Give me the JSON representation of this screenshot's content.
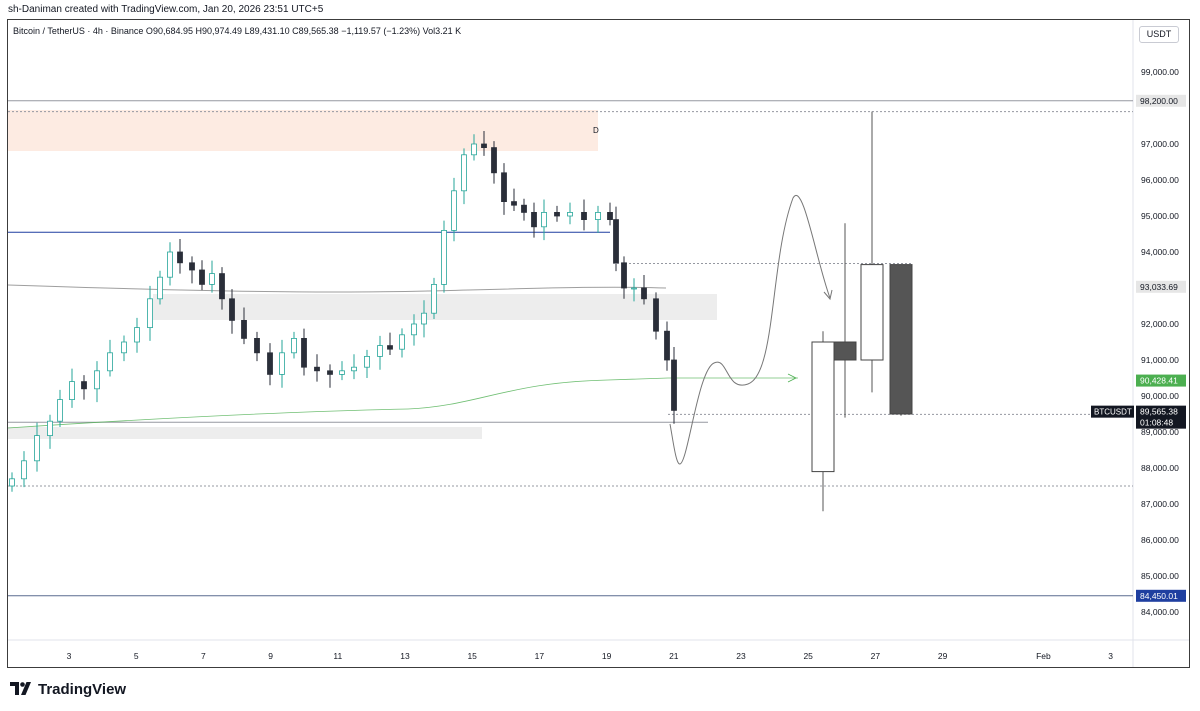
{
  "caption": "sh-Daniman created with TradingView.com, Jan 20, 2026 23:51 UTC+5",
  "symbol_bar": {
    "name": "Bitcoin / TetherUS · 4h · Binance",
    "o_key": "O",
    "o": "90,684.95",
    "h_key": "H",
    "h": "90,974.49",
    "l_key": "L",
    "l": "89,431.10",
    "c_key": "C",
    "c": "89,565.38",
    "change": "−1,119.57 (−1.23%)",
    "vol_key": "Vol",
    "vol": "3.21 K"
  },
  "currency": "USDT",
  "footer": {
    "brand": "TradingView"
  },
  "colors": {
    "up_candle": "#ffffff",
    "down_candle": "#2a2e39",
    "candle_line": "#2a2e39",
    "accent_blue": "#1f3fa0",
    "ma_green": "#4caf50",
    "supply_zone": "#fdebe2",
    "gray_zone": "#ededed"
  },
  "chart_data": {
    "type": "candlestick",
    "timeframe": "4h",
    "x_tick_labels": [
      "3",
      "5",
      "7",
      "9",
      "11",
      "13",
      "15",
      "17",
      "19",
      "21",
      "23",
      "25",
      "27",
      "29",
      "Feb",
      "3"
    ],
    "y_tick_labels": [
      "99,000.00",
      "97,000.00",
      "96,000.00",
      "95,000.00",
      "94,000.00",
      "92,000.00",
      "91,000.00",
      "90,000.00",
      "89,000.00",
      "88,000.00",
      "87,000.00",
      "86,000.00",
      "85,000.00",
      "84,000.00"
    ],
    "ylim": [
      83600,
      99800
    ],
    "price_labels": [
      {
        "text": "98,200.00",
        "value": 98200,
        "bg": "#e6e6e6",
        "fg": "#131722"
      },
      {
        "text": "93,033.69",
        "value": 93033.69,
        "bg": "#e6e6e6",
        "fg": "#131722"
      },
      {
        "text": "90,428.41",
        "value": 90428.41,
        "bg": "#4caf50",
        "fg": "#ffffff"
      },
      {
        "text": "89,565.38",
        "value": 89565.38,
        "bg": "#131722",
        "fg": "#ffffff"
      },
      {
        "text": "01:08:48",
        "value": 89565.38,
        "bg": "#131722",
        "fg": "#ffffff"
      },
      {
        "text": "84,450.01",
        "value": 84450.01,
        "bg": "#1f3fa0",
        "fg": "#ffffff"
      }
    ],
    "symbol_tag": "BTCUSDT",
    "zone_label": "D",
    "levels": [
      {
        "value": 98200,
        "style": "solid"
      },
      {
        "value": 97900,
        "style": "dotted"
      },
      {
        "value": 94550,
        "style": "blue"
      },
      {
        "value": 93680,
        "style": "dotted"
      },
      {
        "value": 89490,
        "style": "dotted"
      },
      {
        "value": 89270,
        "style": "solid"
      },
      {
        "value": 87500,
        "style": "dotted"
      },
      {
        "value": 84450.01,
        "style": "solid-blue"
      }
    ],
    "projection_candles": [
      {
        "o": 87900,
        "h": 91800,
        "l": 86800,
        "c": 91500
      },
      {
        "o": 91500,
        "h": 94800,
        "l": 89400,
        "c": 91000
      },
      {
        "o": 91000,
        "h": 97900,
        "l": 90100,
        "c": 93650
      },
      {
        "o": 93650,
        "h": 93650,
        "l": 89450,
        "c": 89500
      }
    ]
  }
}
